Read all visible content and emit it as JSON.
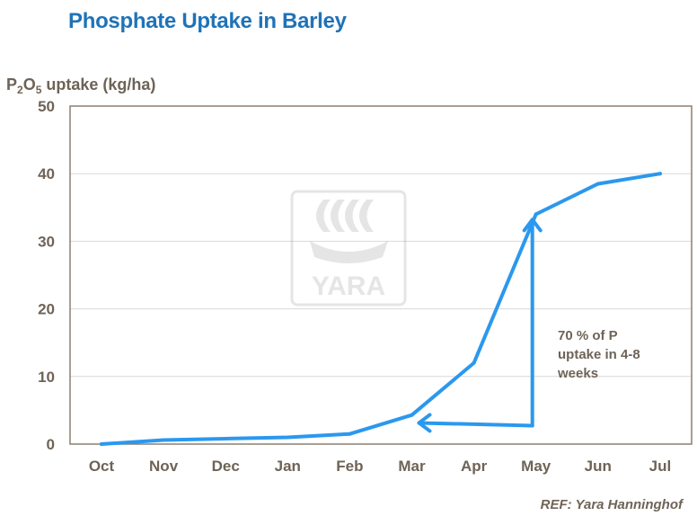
{
  "title": "Phosphate Uptake in Barley",
  "ylabel": {
    "main": "P",
    "sub1": "2",
    "mid": "O",
    "sub2": "5",
    "rest": " uptake (kg/ha)"
  },
  "reference": "REF: Yara Hanninghof",
  "logo_text": "YARA",
  "colors": {
    "title": "#1f73b7",
    "line": "#2b98ee",
    "text": "#6e6356",
    "axis": "#8c7f70",
    "grid": "#d9d9d9"
  },
  "chart_data": {
    "type": "line",
    "categories": [
      "Oct",
      "Nov",
      "Dec",
      "Jan",
      "Feb",
      "Mar",
      "Apr",
      "May",
      "Jun",
      "Jul"
    ],
    "series": [
      {
        "values": [
          0,
          0.6,
          0.8,
          1.0,
          1.5,
          4.3,
          12,
          34,
          38.5,
          40
        ]
      }
    ],
    "ylim": [
      0,
      50
    ],
    "yticks": [
      0,
      10,
      20,
      30,
      40,
      50
    ],
    "grid": true,
    "annotation": {
      "lines": [
        "70 % of P",
        "uptake in 4-8",
        "weeks"
      ],
      "arrow_horizontal": {
        "from_x": "May",
        "to_x": "Mar",
        "y": 3
      },
      "arrow_vertical": {
        "x": "May",
        "from_y": 3,
        "to_y": 32
      }
    }
  }
}
